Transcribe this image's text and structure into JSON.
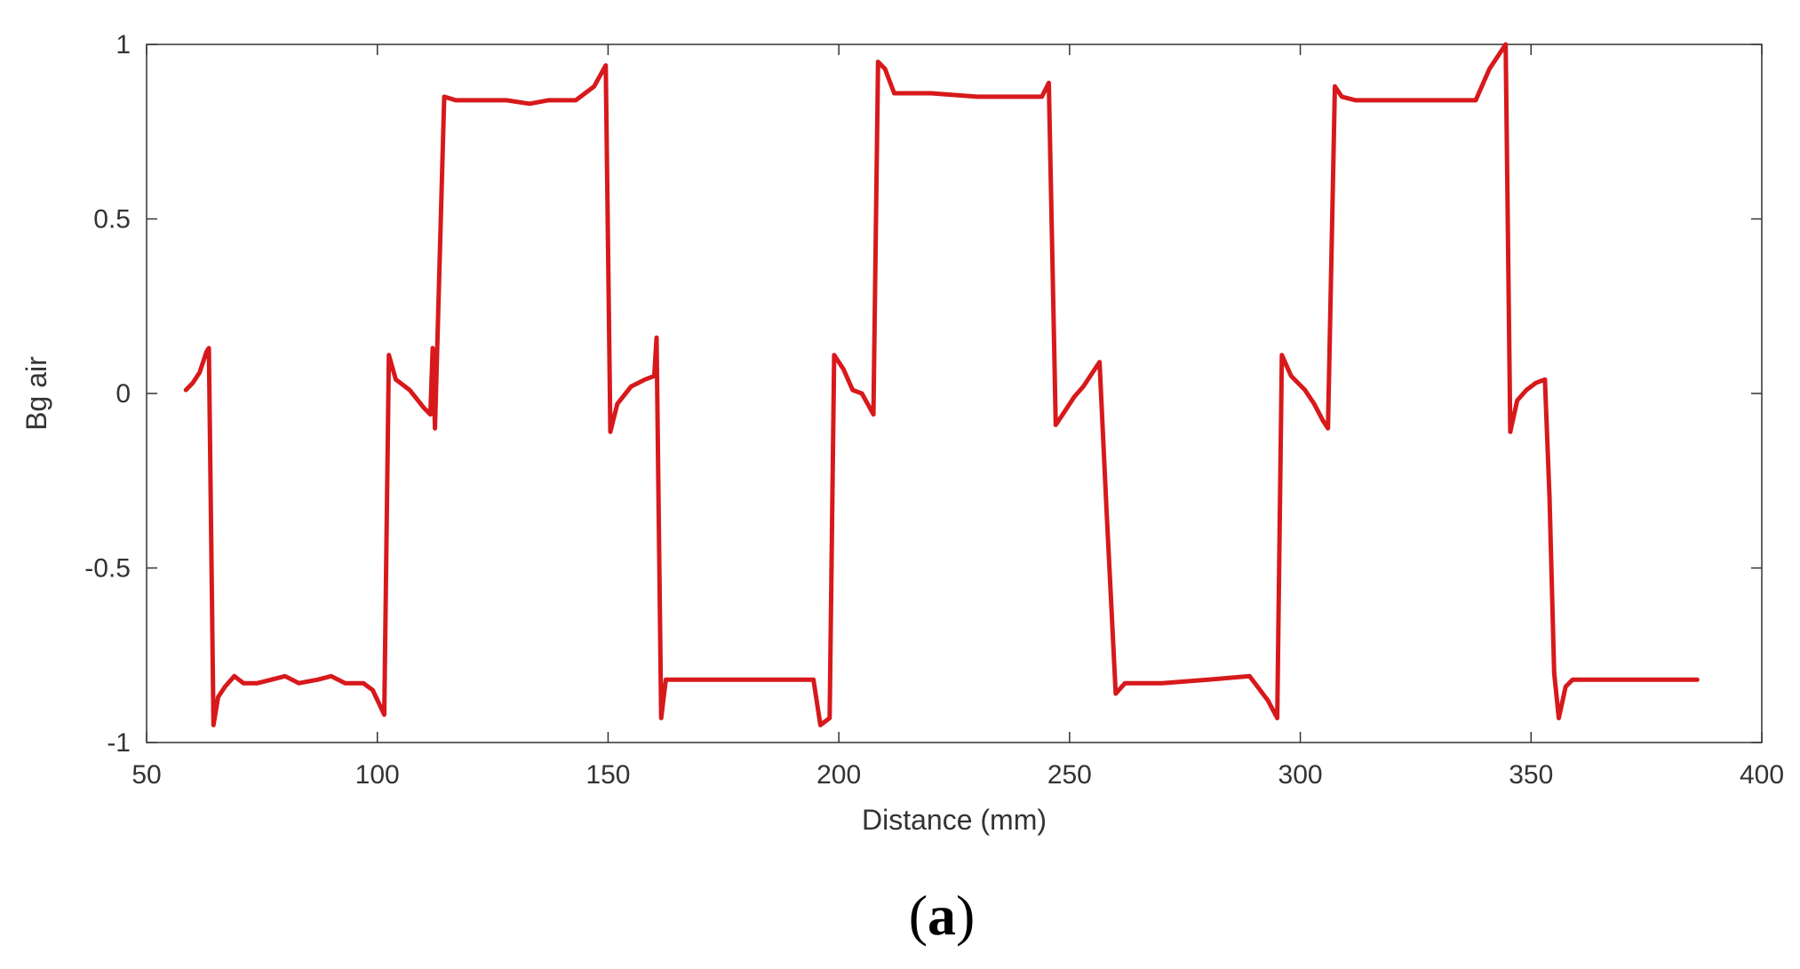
{
  "chart_data": {
    "type": "line",
    "title": "",
    "xlabel": "Distance (mm)",
    "ylabel": "Bg air",
    "xlim": [
      50,
      400
    ],
    "ylim": [
      -1,
      1
    ],
    "xticks": [
      50,
      100,
      150,
      200,
      250,
      300,
      350,
      400
    ],
    "yticks": [
      -1,
      -0.5,
      0,
      0.5,
      1
    ],
    "xtick_labels": [
      "50",
      "100",
      "150",
      "200",
      "250",
      "300",
      "350",
      "400"
    ],
    "ytick_labels": [
      "-1",
      "-0.5",
      "0",
      "0.5",
      "1"
    ],
    "grid": false,
    "legend": "none",
    "series": [
      {
        "color": "#d7191c",
        "points": [
          [
            58.5,
            0.01
          ],
          [
            60,
            0.03
          ],
          [
            61.5,
            0.06
          ],
          [
            63,
            0.12
          ],
          [
            63.5,
            0.13
          ],
          [
            64.5,
            -0.95
          ],
          [
            65.5,
            -0.87
          ],
          [
            67,
            -0.84
          ],
          [
            69,
            -0.81
          ],
          [
            71,
            -0.83
          ],
          [
            74,
            -0.83
          ],
          [
            77,
            -0.82
          ],
          [
            80,
            -0.81
          ],
          [
            83,
            -0.83
          ],
          [
            87,
            -0.82
          ],
          [
            90,
            -0.81
          ],
          [
            93,
            -0.83
          ],
          [
            97,
            -0.83
          ],
          [
            99,
            -0.85
          ],
          [
            101.5,
            -0.92
          ],
          [
            102.5,
            0.11
          ],
          [
            104,
            0.04
          ],
          [
            107,
            0.01
          ],
          [
            110,
            -0.04
          ],
          [
            111.5,
            -0.06
          ],
          [
            112,
            0.13
          ],
          [
            112.5,
            -0.1
          ],
          [
            114.5,
            0.85
          ],
          [
            117,
            0.84
          ],
          [
            122,
            0.84
          ],
          [
            128,
            0.84
          ],
          [
            133,
            0.83
          ],
          [
            137,
            0.84
          ],
          [
            140,
            0.84
          ],
          [
            143,
            0.84
          ],
          [
            147,
            0.88
          ],
          [
            149.5,
            0.94
          ],
          [
            150.5,
            -0.11
          ],
          [
            152,
            -0.03
          ],
          [
            155,
            0.02
          ],
          [
            158,
            0.04
          ],
          [
            160,
            0.05
          ],
          [
            160.5,
            0.16
          ],
          [
            161.5,
            -0.93
          ],
          [
            162.5,
            -0.82
          ],
          [
            170,
            -0.82
          ],
          [
            180,
            -0.82
          ],
          [
            190,
            -0.82
          ],
          [
            194.5,
            -0.82
          ],
          [
            196,
            -0.95
          ],
          [
            198,
            -0.93
          ],
          [
            199,
            0.11
          ],
          [
            201,
            0.07
          ],
          [
            203,
            0.01
          ],
          [
            205,
            0.0
          ],
          [
            207.5,
            -0.06
          ],
          [
            208.5,
            0.95
          ],
          [
            210,
            0.93
          ],
          [
            212,
            0.86
          ],
          [
            220,
            0.86
          ],
          [
            230,
            0.85
          ],
          [
            240,
            0.85
          ],
          [
            244,
            0.85
          ],
          [
            245.5,
            0.89
          ],
          [
            247,
            -0.09
          ],
          [
            249,
            -0.05
          ],
          [
            251,
            -0.01
          ],
          [
            253,
            0.02
          ],
          [
            255,
            0.06
          ],
          [
            256.5,
            0.09
          ],
          [
            258,
            -0.33
          ],
          [
            260,
            -0.86
          ],
          [
            262,
            -0.83
          ],
          [
            270,
            -0.83
          ],
          [
            280,
            -0.82
          ],
          [
            289,
            -0.81
          ],
          [
            293,
            -0.88
          ],
          [
            295,
            -0.93
          ],
          [
            296,
            0.11
          ],
          [
            298,
            0.05
          ],
          [
            301,
            0.01
          ],
          [
            303,
            -0.03
          ],
          [
            305,
            -0.08
          ],
          [
            306,
            -0.1
          ],
          [
            307.5,
            0.88
          ],
          [
            309,
            0.85
          ],
          [
            312,
            0.84
          ],
          [
            320,
            0.84
          ],
          [
            330,
            0.84
          ],
          [
            338,
            0.84
          ],
          [
            341,
            0.93
          ],
          [
            344.5,
            1.0
          ],
          [
            345.5,
            -0.11
          ],
          [
            347,
            -0.02
          ],
          [
            349,
            0.01
          ],
          [
            351,
            0.03
          ],
          [
            353,
            0.04
          ],
          [
            354,
            -0.3
          ],
          [
            355,
            -0.8
          ],
          [
            356,
            -0.93
          ],
          [
            357.5,
            -0.84
          ],
          [
            359,
            -0.82
          ],
          [
            370,
            -0.82
          ],
          [
            380,
            -0.82
          ],
          [
            386,
            -0.82
          ]
        ]
      }
    ]
  },
  "caption": {
    "open_paren": "(",
    "letter": "a",
    "close_paren": ")"
  }
}
